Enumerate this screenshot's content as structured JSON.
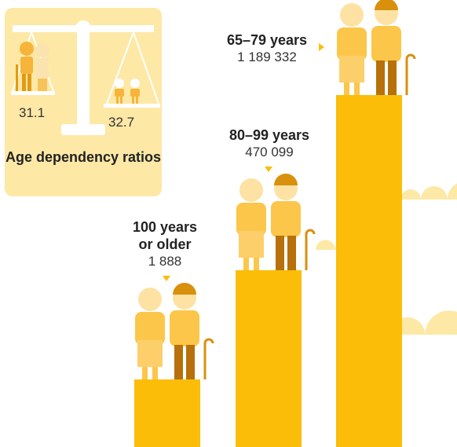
{
  "chart_data": {
    "type": "bar",
    "categories": [
      "100 years or older",
      "80–99 years",
      "65–79 years"
    ],
    "category_lines": [
      [
        "100 years",
        "or older"
      ],
      [
        "80–99 years"
      ],
      [
        "65–79 years"
      ]
    ],
    "value_labels": [
      "1 888",
      "470 099",
      "1 189 332"
    ],
    "values": [
      1888,
      470099,
      1189332
    ],
    "title": "",
    "xlabel": "",
    "ylabel": ""
  },
  "panel": {
    "title": "Age dependency ratios",
    "left_value": "31.1",
    "right_value": "32.7"
  },
  "colors": {
    "bar": "#fbbd08",
    "panel": "#fde8a6",
    "person_light": "#fcc64a",
    "person_dark": "#d9900c",
    "cloud": "#fde8a6",
    "marker": "#fbbd08"
  },
  "icons": [
    "balance-scale-icon",
    "elderly-couple-icon",
    "children-icon",
    "cloud-icon",
    "pointer-triangle-icon"
  ]
}
